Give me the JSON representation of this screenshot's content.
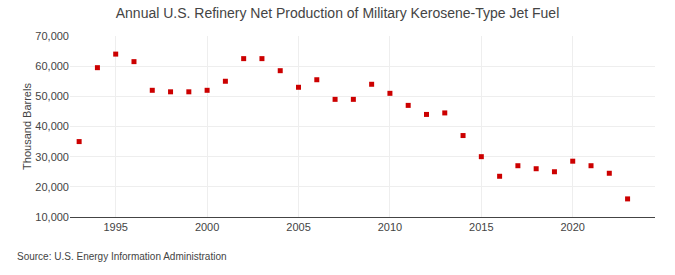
{
  "chart_data": {
    "type": "scatter",
    "title": "Annual U.S. Refinery Net Production of Military Kerosene-Type Jet Fuel",
    "ylabel": "Thousand Barrels",
    "source": "Source: U.S. Energy Information Administration",
    "x": [
      1993,
      1994,
      1995,
      1996,
      1997,
      1998,
      1999,
      2000,
      2001,
      2002,
      2003,
      2004,
      2005,
      2006,
      2007,
      2008,
      2009,
      2010,
      2011,
      2012,
      2013,
      2014,
      2015,
      2016,
      2017,
      2018,
      2019,
      2020,
      2021,
      2022,
      2023
    ],
    "values": [
      35000,
      59500,
      64000,
      61500,
      52000,
      51500,
      51500,
      52000,
      55000,
      62500,
      62500,
      58500,
      53000,
      55500,
      49000,
      49000,
      54000,
      51000,
      47000,
      44000,
      44500,
      37000,
      30000,
      23500,
      27000,
      26000,
      25000,
      28500,
      27000,
      24500,
      16000
    ],
    "color": "#cc0000",
    "marker": "square",
    "xlim": [
      1992.5,
      2024.5
    ],
    "xticks": [
      1995,
      2000,
      2005,
      2010,
      2015,
      2020
    ],
    "ylim": [
      10000,
      70000
    ],
    "yticks": [
      {
        "value": 10000,
        "label": "10,000"
      },
      {
        "value": 20000,
        "label": "20,000"
      },
      {
        "value": 30000,
        "label": "30,000"
      },
      {
        "value": 40000,
        "label": "40,000"
      },
      {
        "value": 50000,
        "label": "50,000"
      },
      {
        "value": 60000,
        "label": "60,000"
      },
      {
        "value": 70000,
        "label": "70,000"
      }
    ],
    "grid": true
  }
}
